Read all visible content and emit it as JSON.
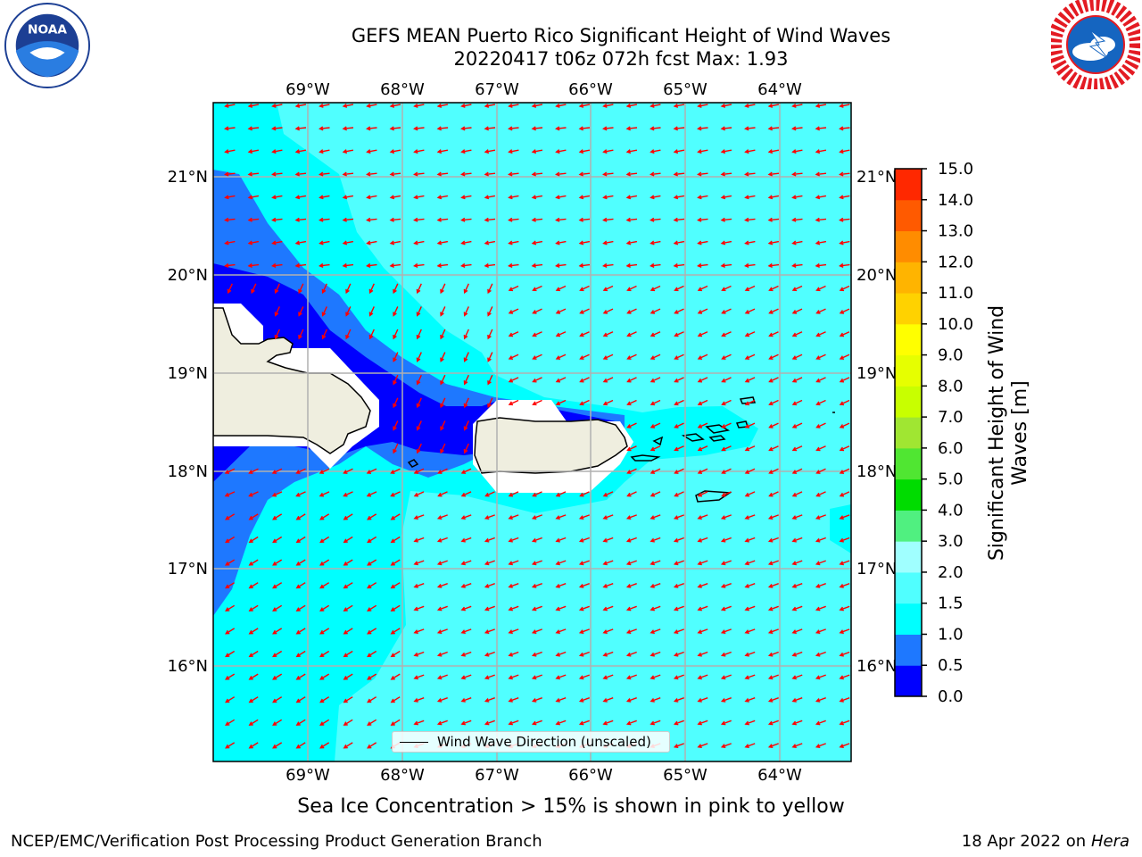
{
  "header": {
    "title_line1": "GEFS MEAN Puerto Rico Significant Height of Wind Waves",
    "title_line2": "20220417 t06z 072h fcst   Max: 1.93"
  },
  "logos": {
    "left": "noaa-logo-icon",
    "right": "nws-logo-icon"
  },
  "map": {
    "lon_ticks": [
      "69°W",
      "68°W",
      "67°W",
      "66°W",
      "65°W",
      "64°W"
    ],
    "lat_ticks": [
      "21°N",
      "20°N",
      "19°N",
      "18°N",
      "17°N",
      "16°N"
    ],
    "land_color": "#efeedf",
    "arrow_color": "#ff0000",
    "grid_color": "#b0b0b0"
  },
  "legend": {
    "label": "Wind Wave Direction (unscaled)"
  },
  "colorbar": {
    "label_line1": "Significant Height of Wind",
    "label_line2": "Waves [m]",
    "ticks": [
      "0.0",
      "0.5",
      "1.0",
      "1.5",
      "2.0",
      "3.0",
      "4.0",
      "5.0",
      "6.0",
      "7.0",
      "8.0",
      "9.0",
      "10.0",
      "11.0",
      "12.0",
      "13.0",
      "14.0",
      "15.0"
    ],
    "colors": [
      "#0000ff",
      "#1e78ff",
      "#00ffff",
      "#50ffff",
      "#a0ffff",
      "#50f080",
      "#00dc00",
      "#50e632",
      "#a0e632",
      "#c8ff00",
      "#e6ff00",
      "#ffff00",
      "#ffd200",
      "#ffb400",
      "#ff8c00",
      "#ff5a00",
      "#ff2800",
      "#ff0000"
    ]
  },
  "footer": {
    "sea_ice_note": "Sea Ice Concentration > 15% is shown in pink to yellow",
    "left": "NCEP/EMC/Verification Post Processing Product Generation Branch",
    "right_date": "18 Apr 2022 on ",
    "right_host": "Hera"
  }
}
